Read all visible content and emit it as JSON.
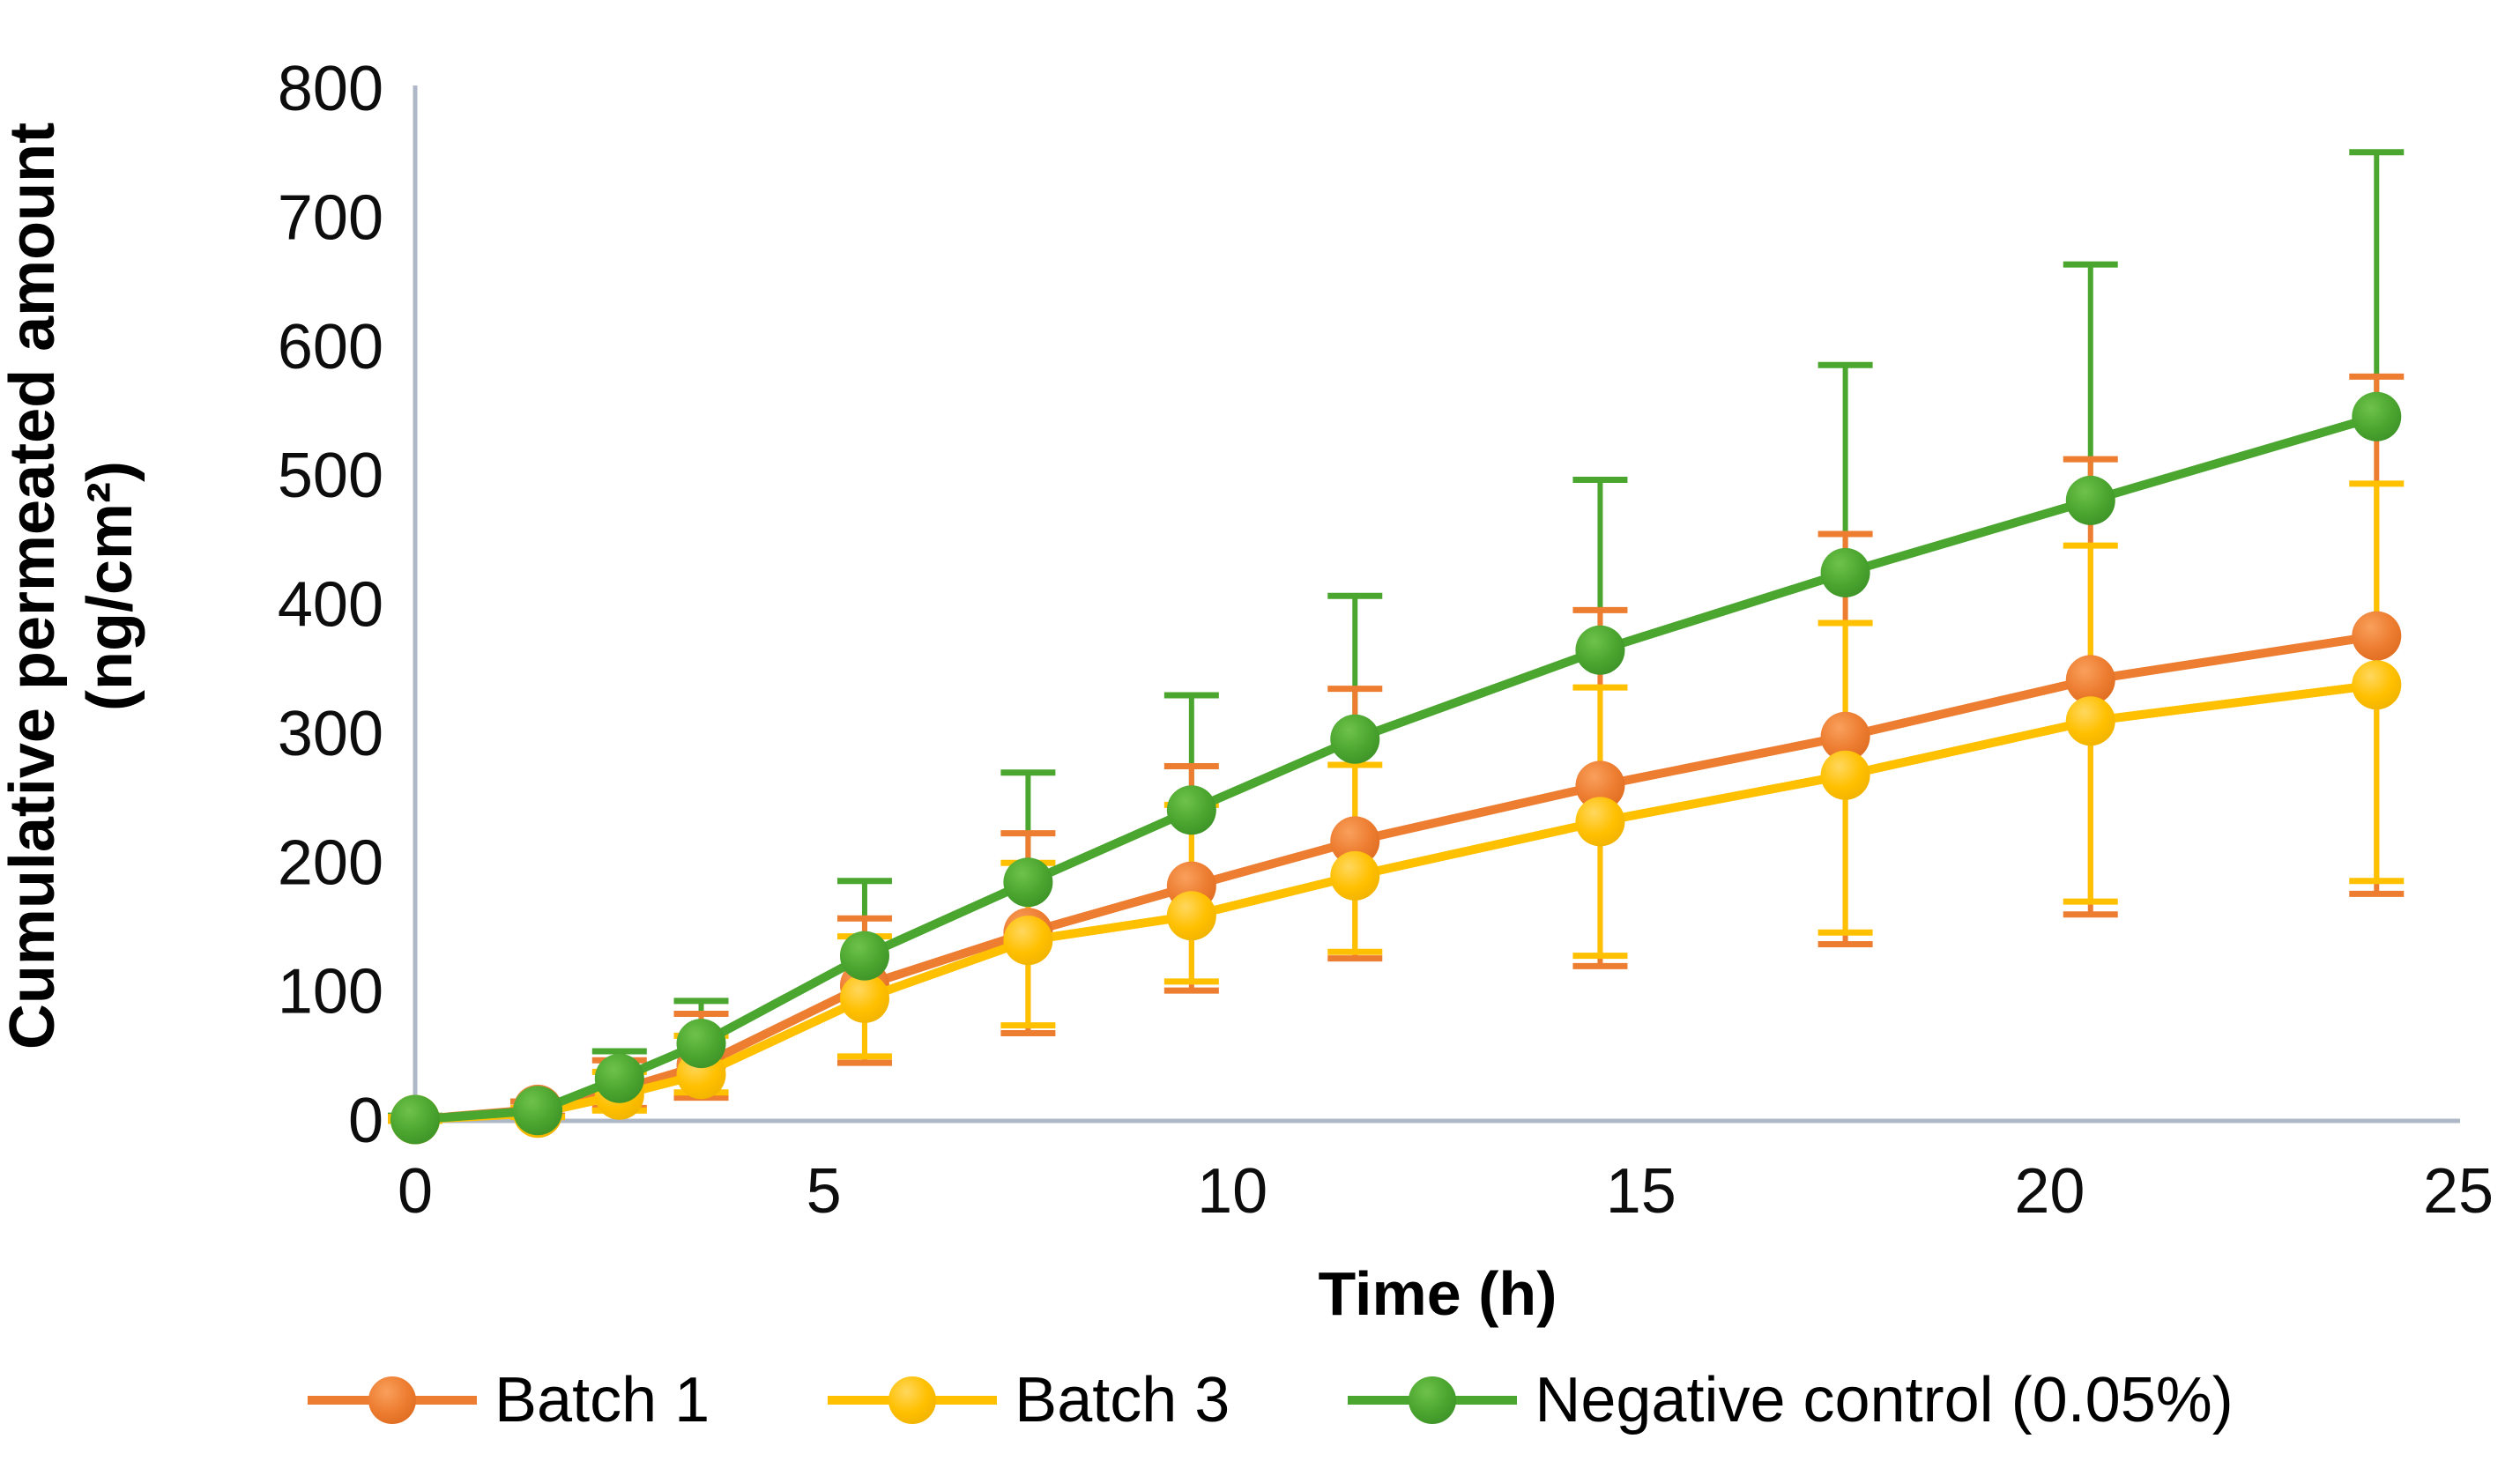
{
  "chart_data": {
    "type": "line",
    "title": "",
    "xlabel": "Time (h)",
    "ylabel_line1": "Cumulative permeated amount",
    "ylabel_line2": "(ng/cm²)",
    "xlim": [
      0,
      25
    ],
    "ylim": [
      0,
      800
    ],
    "x_ticks": [
      0,
      5,
      10,
      15,
      20,
      25
    ],
    "y_ticks": [
      0,
      100,
      200,
      300,
      400,
      500,
      600,
      700,
      800
    ],
    "grid": "off",
    "legend_position": "bottom",
    "axis_color": "#AEB8C6",
    "x": [
      0,
      1.5,
      2.5,
      3.5,
      5.5,
      7.5,
      9.5,
      11.5,
      14.5,
      17.5,
      20.5,
      24
    ],
    "series": [
      {
        "name": "Batch 1",
        "color": "#ED7D31",
        "color_light": "#F9A05C",
        "color_dark": "#DC6A1E",
        "values": [
          1,
          9,
          24,
          43,
          105,
          146,
          182,
          217,
          260,
          298,
          342,
          376
        ],
        "err_plus": [
          2,
          6,
          23,
          40,
          52,
          77,
          93,
          118,
          136,
          157,
          171,
          201
        ],
        "err_minus": [
          1,
          5,
          14,
          25,
          60,
          78,
          81,
          91,
          140,
          161,
          182,
          200
        ]
      },
      {
        "name": "Batch 3",
        "color": "#FFC000",
        "color_light": "#FFD75E",
        "color_dark": "#EDB000",
        "values": [
          1,
          6,
          20,
          36,
          95,
          140,
          159,
          190,
          232,
          268,
          310,
          338
        ],
        "err_plus": [
          2,
          4,
          18,
          30,
          48,
          60,
          86,
          86,
          104,
          118,
          136,
          156
        ],
        "err_minus": [
          1,
          3,
          12,
          14,
          45,
          66,
          51,
          59,
          104,
          122,
          140,
          152
        ]
      },
      {
        "name": "Negative control (0.05%)",
        "color": "#4BA62F",
        "color_light": "#6FC24B",
        "color_dark": "#3B8F26",
        "values": [
          1,
          8,
          33,
          60,
          128,
          185,
          241,
          296,
          365,
          425,
          481,
          546
        ],
        "err_plus": [
          3,
          7,
          21,
          33,
          58,
          85,
          89,
          111,
          132,
          161,
          183,
          205
        ],
        "err_minus": [
          0,
          0,
          0,
          0,
          0,
          0,
          0,
          0,
          0,
          0,
          0,
          0
        ]
      }
    ]
  }
}
